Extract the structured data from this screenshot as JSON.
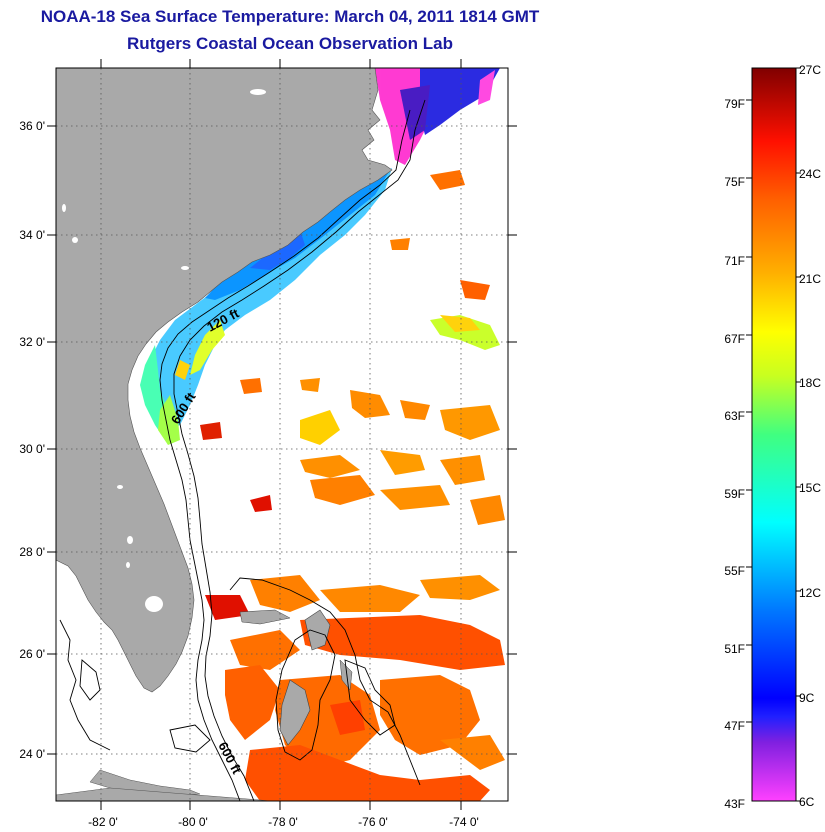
{
  "header": {
    "title": "NOAA-18 Sea Surface Temperature:  March 04, 2011 1814 GMT",
    "subtitle": "Rutgers Coastal Ocean Observation Lab"
  },
  "map": {
    "lon_ticks": [
      "-82 0'",
      "-80 0'",
      "-78 0'",
      "-76 0'",
      "-74 0'"
    ],
    "lat_ticks": [
      "36 0'",
      "34 0'",
      "32 0'",
      "30 0'",
      "28 0'",
      "26 0'",
      "24 0'"
    ],
    "isobaths": [
      "120 ft",
      "600 ft",
      "600 ft"
    ],
    "colors": {
      "land": "#a9a9a9",
      "ocean_nodata": "#ffffff"
    }
  },
  "colorbar": {
    "fahrenheit": [
      "79F",
      "75F",
      "71F",
      "67F",
      "63F",
      "59F",
      "55F",
      "51F",
      "47F",
      "43F"
    ],
    "celsius": [
      "27C",
      "24C",
      "21C",
      "18C",
      "15C",
      "12C",
      "9C",
      "6C"
    ]
  }
}
